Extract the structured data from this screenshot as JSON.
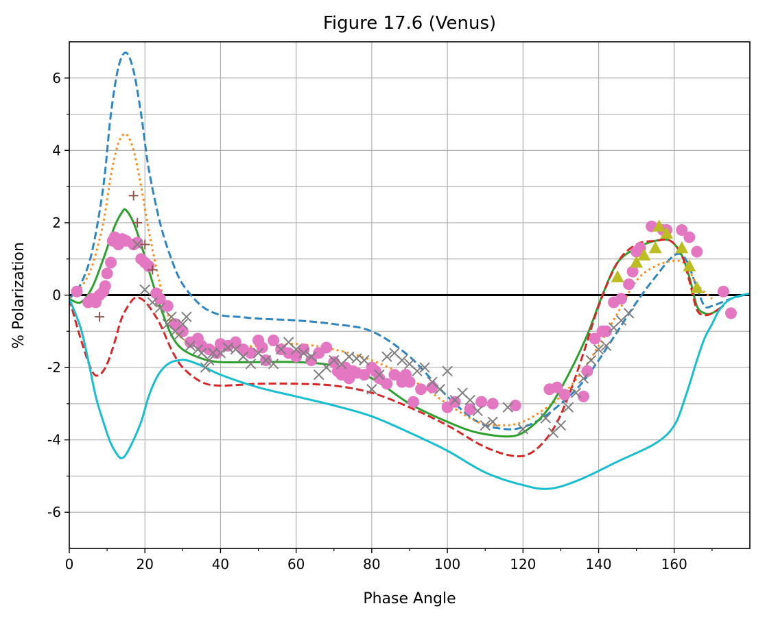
{
  "chart_data": {
    "type": "line",
    "title": "Figure 17.6 (Venus)",
    "xlabel": "Phase Angle",
    "ylabel": "% Polarization",
    "xlim": [
      0,
      180
    ],
    "ylim": [
      -7,
      7
    ],
    "grid": true,
    "x_ticks": [
      0,
      20,
      40,
      60,
      80,
      100,
      120,
      140,
      160
    ],
    "x_minor_ticks": [
      10,
      30,
      50,
      70,
      90,
      110,
      130,
      150,
      170
    ],
    "y_ticks": [
      -6,
      -4,
      -2,
      0,
      2,
      4,
      6
    ],
    "y_minor_ticks": [
      -5,
      -3,
      -1,
      1,
      3,
      5
    ],
    "x_tick_labels": [
      "0",
      "20",
      "40",
      "60",
      "80",
      "100",
      "120",
      "140",
      "160"
    ],
    "y_tick_labels": [
      "-6",
      "-4",
      "-2",
      "0",
      "2",
      "4",
      "6"
    ],
    "zero_line": true,
    "series": [
      {
        "kind": "line",
        "style": "dashed",
        "color": "#2e86c1",
        "x": [
          0,
          3,
          6,
          9,
          11,
          13,
          15,
          17,
          19,
          21,
          24,
          27,
          30,
          35,
          40,
          45,
          50,
          60,
          70,
          80,
          90,
          100,
          108,
          115,
          120,
          125,
          130,
          135,
          140,
          145,
          150,
          155,
          160,
          163,
          166,
          168,
          170,
          175,
          180
        ],
        "y": [
          -0.1,
          0.3,
          1.2,
          3.0,
          5.0,
          6.3,
          6.7,
          6.2,
          5.0,
          3.5,
          2.0,
          1.0,
          0.3,
          -0.3,
          -0.55,
          -0.6,
          -0.65,
          -0.7,
          -0.8,
          -1.0,
          -1.7,
          -2.8,
          -3.5,
          -3.7,
          -3.65,
          -3.4,
          -3.0,
          -2.5,
          -1.8,
          -1.0,
          -0.2,
          0.5,
          1.1,
          1.0,
          0.2,
          -0.3,
          -0.3,
          -0.1,
          0.05
        ]
      },
      {
        "kind": "line",
        "style": "dotted",
        "color": "#ff8c1a",
        "x": [
          0,
          3,
          6,
          9,
          11,
          13,
          15,
          17,
          19,
          21,
          24,
          27,
          30,
          35,
          40,
          50,
          60,
          70,
          80,
          90,
          100,
          108,
          115,
          120,
          125,
          130,
          135,
          140,
          145,
          150,
          155,
          160,
          163,
          166,
          170
        ],
        "y": [
          -0.1,
          0.2,
          0.8,
          2.0,
          3.3,
          4.2,
          4.45,
          4.0,
          3.0,
          1.8,
          0.3,
          -0.8,
          -1.2,
          -1.4,
          -1.45,
          -1.4,
          -1.35,
          -1.5,
          -1.8,
          -2.3,
          -3.0,
          -3.5,
          -3.6,
          -3.5,
          -3.2,
          -2.8,
          -2.2,
          -1.4,
          -0.5,
          0.4,
          0.8,
          0.95,
          0.85,
          0.3,
          -0.1
        ]
      },
      {
        "kind": "line",
        "style": "solid",
        "color": "#2ca02c",
        "x": [
          0,
          3,
          6,
          9,
          12,
          14,
          15,
          17,
          19,
          21,
          24,
          27,
          30,
          35,
          40,
          50,
          60,
          70,
          80,
          90,
          100,
          108,
          117,
          122,
          127,
          132,
          137,
          141,
          145,
          150,
          155,
          159,
          162,
          164,
          166,
          168,
          170,
          173
        ],
        "y": [
          -0.1,
          -0.2,
          0.2,
          1.0,
          1.9,
          2.3,
          2.35,
          2.0,
          1.4,
          0.7,
          -0.3,
          -1.1,
          -1.5,
          -1.75,
          -1.85,
          -1.85,
          -1.85,
          -1.95,
          -2.3,
          -3.0,
          -3.5,
          -3.8,
          -3.9,
          -3.65,
          -3.1,
          -2.2,
          -1.1,
          0.0,
          0.9,
          1.3,
          1.5,
          1.5,
          1.1,
          0.5,
          -0.3,
          -0.5,
          -0.5,
          -0.3
        ]
      },
      {
        "kind": "line",
        "style": "dashed",
        "color": "#d62728",
        "x": [
          0,
          3,
          6,
          8,
          10,
          12,
          14,
          17,
          19,
          21,
          24,
          27,
          30,
          35,
          40,
          50,
          60,
          70,
          80,
          90,
          100,
          110,
          118,
          123,
          128,
          132,
          136,
          140,
          145,
          150,
          155,
          159,
          162,
          164,
          166,
          168,
          170,
          173
        ],
        "y": [
          -0.1,
          -1.2,
          -2.1,
          -2.2,
          -1.9,
          -1.3,
          -0.6,
          -0.1,
          -0.1,
          -0.3,
          -0.8,
          -1.5,
          -2.0,
          -2.4,
          -2.5,
          -2.45,
          -2.45,
          -2.5,
          -2.7,
          -3.1,
          -3.6,
          -4.2,
          -4.45,
          -4.3,
          -3.7,
          -2.8,
          -1.6,
          -0.3,
          0.9,
          1.4,
          1.5,
          1.5,
          1.1,
          0.4,
          -0.4,
          -0.55,
          -0.5,
          -0.3
        ]
      },
      {
        "kind": "line",
        "style": "solid",
        "color": "#17becf",
        "x": [
          0,
          3,
          5,
          7,
          9,
          11,
          13,
          14,
          15,
          17,
          19,
          21,
          23,
          25,
          27,
          29,
          31,
          35,
          40,
          50,
          60,
          70,
          80,
          90,
          100,
          110,
          120,
          127,
          135,
          145,
          155,
          160,
          163,
          166,
          168,
          170,
          172,
          175,
          180
        ],
        "y": [
          -0.1,
          -0.9,
          -1.8,
          -2.8,
          -3.5,
          -4.1,
          -4.45,
          -4.5,
          -4.4,
          -4.0,
          -3.5,
          -2.8,
          -2.3,
          -2.0,
          -1.85,
          -1.8,
          -1.8,
          -1.95,
          -2.2,
          -2.55,
          -2.8,
          -3.05,
          -3.35,
          -3.8,
          -4.3,
          -4.9,
          -5.25,
          -5.35,
          -5.1,
          -4.6,
          -4.1,
          -3.6,
          -2.8,
          -1.8,
          -1.2,
          -0.8,
          -0.4,
          -0.1,
          0.05
        ]
      },
      {
        "kind": "markers",
        "marker": "circle",
        "color": "#e377c2",
        "x": [
          2,
          5,
          6,
          7,
          8,
          9,
          9.5,
          10,
          11,
          11.5,
          12,
          13,
          14,
          15,
          17,
          18,
          19,
          20,
          21,
          23,
          24,
          26,
          28,
          30,
          32,
          34,
          35,
          37,
          39,
          40,
          42,
          44,
          46,
          48,
          50,
          51,
          52,
          54,
          56,
          58,
          60,
          62,
          64,
          66,
          68,
          70,
          71,
          72,
          73,
          74,
          75,
          76,
          78,
          80,
          81,
          82,
          84,
          86,
          88,
          89,
          90,
          91,
          93,
          96,
          100,
          102,
          106,
          109,
          112,
          118,
          127,
          129,
          131,
          136,
          137,
          139,
          141,
          142,
          144,
          146,
          148,
          149,
          150,
          151,
          154,
          157,
          158,
          162,
          164,
          166,
          173,
          175
        ],
        "y": [
          0.1,
          -0.2,
          -0.1,
          -0.2,
          0.0,
          0.1,
          0.25,
          0.6,
          0.9,
          1.5,
          1.6,
          1.4,
          1.55,
          1.5,
          1.4,
          1.45,
          1.0,
          0.9,
          0.8,
          0.05,
          -0.1,
          -0.3,
          -0.8,
          -1.0,
          -1.3,
          -1.2,
          -1.4,
          -1.5,
          -1.6,
          -1.35,
          -1.4,
          -1.3,
          -1.5,
          -1.6,
          -1.25,
          -1.45,
          -1.8,
          -1.25,
          -1.5,
          -1.6,
          -1.7,
          -1.5,
          -1.8,
          -1.6,
          -1.45,
          -1.85,
          -2.1,
          -2.2,
          -2.0,
          -2.3,
          -2.1,
          -2.15,
          -2.2,
          -2.0,
          -2.1,
          -2.3,
          -2.45,
          -2.2,
          -2.4,
          -2.2,
          -2.4,
          -2.95,
          -2.6,
          -2.55,
          -3.1,
          -2.95,
          -3.15,
          -2.95,
          -3.0,
          -3.05,
          -2.6,
          -2.55,
          -2.75,
          -2.8,
          -2.1,
          -1.2,
          -1.0,
          -1.0,
          -0.2,
          -0.1,
          0.3,
          0.65,
          1.2,
          1.3,
          1.9,
          1.8,
          1.8,
          1.8,
          1.6,
          1.2,
          0.1,
          -0.5
        ]
      },
      {
        "kind": "markers",
        "marker": "x",
        "color": "#7f7f7f",
        "x": [
          18,
          20,
          22,
          24,
          26,
          27,
          28,
          29,
          30,
          31,
          32,
          34,
          35,
          36,
          37,
          38,
          40,
          42,
          44,
          46,
          48,
          50,
          52,
          54,
          56,
          58,
          60,
          62,
          64,
          66,
          68,
          70,
          72,
          74,
          76,
          78,
          80,
          82,
          84,
          86,
          88,
          90,
          92,
          94,
          96,
          98,
          100,
          102,
          104,
          106,
          108,
          110,
          112,
          116,
          120,
          126,
          128,
          130,
          132,
          134,
          136,
          138,
          140,
          142,
          144,
          146,
          148
        ],
        "y": [
          1.4,
          0.15,
          -0.2,
          -0.35,
          -0.8,
          -0.6,
          -1.0,
          -1.1,
          -0.8,
          -0.6,
          -1.4,
          -1.5,
          -1.6,
          -2.0,
          -1.8,
          -1.6,
          -1.6,
          -1.45,
          -1.5,
          -1.7,
          -1.9,
          -1.6,
          -1.8,
          -1.9,
          -1.5,
          -1.3,
          -1.5,
          -1.6,
          -1.7,
          -2.2,
          -2.0,
          -1.8,
          -1.9,
          -1.7,
          -1.75,
          -1.8,
          -2.6,
          -2.2,
          -1.7,
          -1.6,
          -1.8,
          -1.9,
          -2.1,
          -2.0,
          -2.4,
          -2.6,
          -2.1,
          -2.9,
          -2.7,
          -2.9,
          -3.2,
          -3.6,
          -3.5,
          -3.1,
          -3.7,
          -3.4,
          -3.8,
          -3.6,
          -3.1,
          -2.7,
          -2.3,
          -1.8,
          -1.5,
          -1.4,
          -0.9,
          -0.7,
          -0.5
        ]
      },
      {
        "kind": "markers",
        "marker": "triangle",
        "color": "#bcbd22",
        "x": [
          145,
          150,
          152,
          155,
          156,
          158,
          162,
          164,
          166
        ],
        "y": [
          0.5,
          0.9,
          1.1,
          1.3,
          1.9,
          1.7,
          1.3,
          0.8,
          0.2
        ]
      },
      {
        "kind": "markers",
        "marker": "plus",
        "color": "#8c564b",
        "x": [
          8,
          17,
          18,
          20,
          22
        ],
        "y": [
          -0.6,
          2.75,
          2.0,
          1.4,
          0.7
        ]
      }
    ]
  }
}
